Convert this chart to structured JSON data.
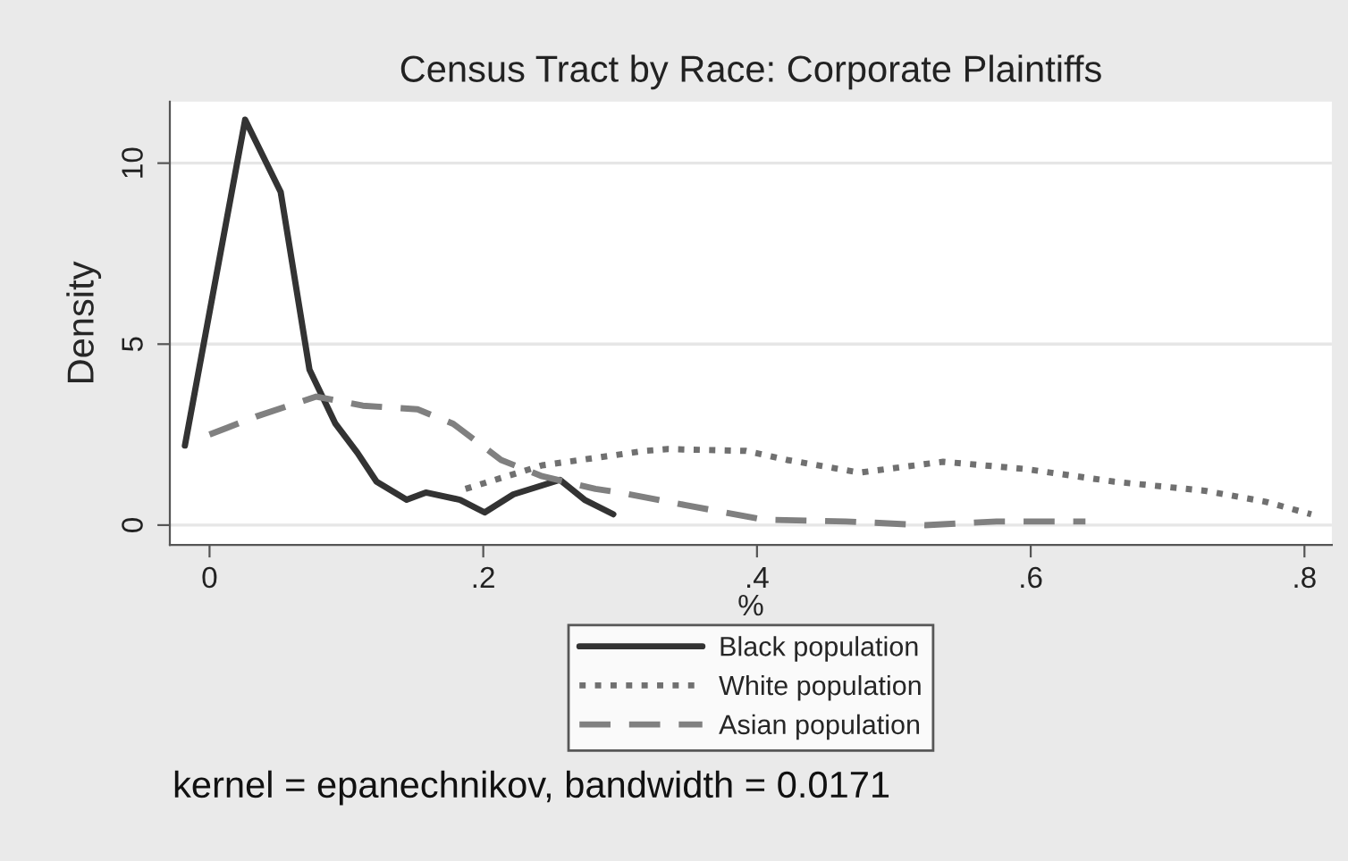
{
  "chart_data": {
    "type": "line",
    "title": "Census Tract by Race: Corporate Plaintiffs",
    "xlabel": "%",
    "ylabel": "Density",
    "xlim": [
      -0.029,
      0.82
    ],
    "ylim": [
      -0.55,
      11.7
    ],
    "xticks": [
      0,
      {
        "value": 0.2,
        "label": ".2"
      },
      {
        "value": 0.4,
        "label": ".4"
      },
      {
        "value": 0.6,
        "label": ".6"
      },
      {
        "value": 0.8,
        "label": ".8"
      }
    ],
    "yticks": [
      0,
      5,
      10
    ],
    "grid": "y",
    "legend": "bottom",
    "marker": "none",
    "annotations": [
      "kernel = epanechnikov, bandwidth = 0.0171"
    ],
    "series": [
      {
        "name": "Black population",
        "color": "#333333",
        "line_style": "solid",
        "x": [
          -0.018,
          0.026,
          0.052,
          0.073,
          0.092,
          0.108,
          0.122,
          0.144,
          0.158,
          0.183,
          0.201,
          0.222,
          0.256,
          0.274,
          0.295
        ],
        "values": [
          2.2,
          11.2,
          9.2,
          4.3,
          2.8,
          2.0,
          1.2,
          0.7,
          0.9,
          0.7,
          0.35,
          0.85,
          1.25,
          0.7,
          0.3
        ]
      },
      {
        "name": "White population",
        "color": "#707070",
        "line_style": "dotted",
        "x": [
          0.187,
          0.243,
          0.318,
          0.335,
          0.392,
          0.422,
          0.475,
          0.536,
          0.596,
          0.661,
          0.727,
          0.771,
          0.805
        ],
        "values": [
          1.0,
          1.65,
          2.05,
          2.1,
          2.05,
          1.8,
          1.45,
          1.75,
          1.55,
          1.2,
          0.95,
          0.65,
          0.3
        ]
      },
      {
        "name": "Asian population",
        "color": "#808080",
        "line_style": "dashed",
        "x": [
          0.0,
          0.034,
          0.078,
          0.112,
          0.152,
          0.178,
          0.213,
          0.243,
          0.282,
          0.3,
          0.348,
          0.405,
          0.465,
          0.523,
          0.575,
          0.64
        ],
        "values": [
          2.5,
          3.0,
          3.55,
          3.3,
          3.2,
          2.8,
          1.8,
          1.35,
          1.0,
          0.9,
          0.55,
          0.15,
          0.1,
          0.0,
          0.1,
          0.1
        ]
      }
    ]
  }
}
